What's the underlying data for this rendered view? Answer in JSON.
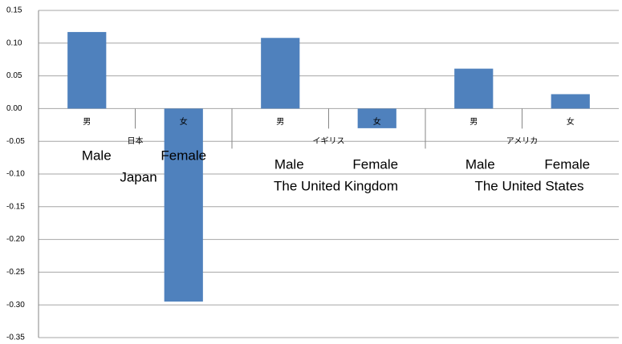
{
  "chart_data": {
    "type": "bar",
    "categories": [
      "男",
      "女",
      "男",
      "女",
      "男",
      "女"
    ],
    "category_annotations": [
      "Male",
      "Female",
      "Male",
      "Female",
      "Male",
      "Female"
    ],
    "groups": [
      "日本",
      "イギリス",
      "アメリカ"
    ],
    "group_annotations": [
      "Japan",
      "The United Kingdom",
      "The United States"
    ],
    "values": [
      0.117,
      -0.295,
      0.108,
      -0.03,
      0.061,
      0.022
    ],
    "color": "#4f81bd",
    "ylim": [
      -0.35,
      0.15
    ],
    "yticks": [
      0.15,
      {
        "value": 0.1,
        "label": "0.10"
      },
      0.05,
      {
        "value": 0,
        "label": "0.00"
      },
      -0.05,
      {
        "value": -0.1,
        "label": "-0.10"
      },
      -0.15,
      {
        "value": -0.2,
        "label": "-0.20"
      },
      -0.25,
      {
        "value": -0.3,
        "label": "-0.30"
      },
      -0.35
    ],
    "grid": true
  }
}
